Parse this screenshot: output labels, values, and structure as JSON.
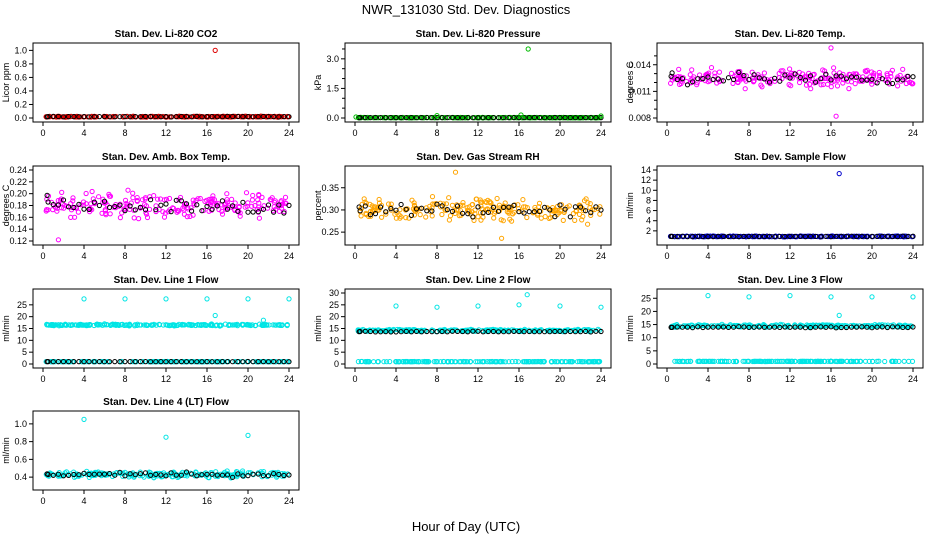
{
  "figure": {
    "title": "NWR_131030  Std. Dev. Diagnostics",
    "xlabel": "Hour of Day (UTC)"
  },
  "colors": {
    "co2": "#dd0000",
    "pressure": "#00bb00",
    "temp": "#ff00ff",
    "rh": "#ffa500",
    "sample_flow": "#0000cc",
    "line_flow": "#00e5e5",
    "highlight": "#000000"
  },
  "chart_data": [
    {
      "type": "scatter",
      "title": "Stan. Dev. Li-820 CO2",
      "ylabel": "Licor ppm",
      "xlim": [
        0,
        24
      ],
      "ylim": [
        0,
        1.05
      ],
      "yticks": [
        0,
        0.2,
        0.4,
        0.6,
        0.8,
        1.0
      ],
      "ytick_labels": [
        "0.0",
        "0.2",
        "0.4",
        "0.6",
        "0.8",
        "1.0"
      ],
      "xticks": [
        0,
        4,
        8,
        12,
        16,
        20,
        24
      ],
      "series_color": "#dd0000",
      "baseline": 0.02,
      "spread": 0.008,
      "outliers": [
        {
          "x": 16.8,
          "y": 1.0
        }
      ]
    },
    {
      "type": "scatter",
      "title": "Stan. Dev. Li-820 Pressure",
      "ylabel": "kPa",
      "xlim": [
        0,
        24
      ],
      "ylim": [
        0,
        3.6
      ],
      "yticks": [
        0,
        1.5,
        3.0
      ],
      "ytick_labels": [
        "0.0",
        "1.5",
        "3.0"
      ],
      "minor_yticks": [
        0.5,
        1,
        2,
        2.5,
        3.5
      ],
      "xticks": [
        0,
        4,
        8,
        12,
        16,
        20,
        24
      ],
      "series_color": "#00bb00",
      "baseline": 0.02,
      "spread": 0.01,
      "outliers": [
        {
          "x": 16.9,
          "y": 3.5
        },
        {
          "x": 16.2,
          "y": 0.15
        },
        {
          "x": 8.0,
          "y": 0.12
        },
        {
          "x": 24,
          "y": 0.1
        },
        {
          "x": 0.1,
          "y": 0.05
        }
      ]
    },
    {
      "type": "scatter",
      "title": "Stan. Dev. Li-820 Temp.",
      "ylabel": "degrees C",
      "xlim": [
        0,
        24
      ],
      "ylim": [
        0.008,
        0.016
      ],
      "yticks": [
        0.008,
        0.011,
        0.014
      ],
      "ytick_labels": [
        "0.008",
        "0.011",
        "0.014"
      ],
      "minor_yticks": [
        0.009,
        0.01,
        0.012,
        0.013,
        0.015
      ],
      "xticks": [
        0,
        4,
        8,
        12,
        16,
        20,
        24
      ],
      "series_color": "#ff00ff",
      "baseline": 0.0125,
      "spread": 0.0014,
      "outliers": [
        {
          "x": 16.0,
          "y": 0.0159
        },
        {
          "x": 16.5,
          "y": 0.0082
        }
      ]
    },
    {
      "type": "scatter",
      "title": "Stan. Dev. Amb. Box Temp.",
      "ylabel": "degrees C",
      "xlim": [
        0,
        24
      ],
      "ylim": [
        0.12,
        0.24
      ],
      "yticks": [
        0.12,
        0.14,
        0.16,
        0.18,
        0.2,
        0.22,
        0.24
      ],
      "ytick_labels": [
        "0.12",
        "0.14",
        "0.16",
        "0.18",
        "0.20",
        "0.22",
        "0.24"
      ],
      "xticks": [
        0,
        4,
        8,
        12,
        16,
        20,
        24
      ],
      "series_color": "#ff00ff",
      "baseline": 0.18,
      "spread": 0.03,
      "outliers": [
        {
          "x": 1.5,
          "y": 0.122
        }
      ]
    },
    {
      "type": "scatter",
      "title": "Stan. Dev. Gas Stream RH",
      "ylabel": "percent",
      "xlim": [
        0,
        24
      ],
      "ylim": [
        0.23,
        0.39
      ],
      "yticks": [
        0.25,
        0.3,
        0.35
      ],
      "ytick_labels": [
        "0.25",
        "0.30",
        "0.35"
      ],
      "xticks": [
        0,
        4,
        8,
        12,
        16,
        20,
        24
      ],
      "series_color": "#ffa500",
      "baseline": 0.3,
      "spread": 0.035,
      "outliers": [
        {
          "x": 9.8,
          "y": 0.385
        },
        {
          "x": 14.3,
          "y": 0.236
        }
      ]
    },
    {
      "type": "scatter",
      "title": "Stan. Dev. Sample Flow",
      "ylabel": "ml/min",
      "xlim": [
        0,
        24
      ],
      "ylim": [
        0,
        14
      ],
      "yticks": [
        2,
        4,
        6,
        8,
        10,
        12,
        14
      ],
      "ytick_labels": [
        "2",
        "4",
        "6",
        "8",
        "10",
        "12",
        "14"
      ],
      "xticks": [
        0,
        4,
        8,
        12,
        16,
        20,
        24
      ],
      "series_color": "#0000cc",
      "baseline": 0.9,
      "spread": 0.12,
      "outliers": [
        {
          "x": 16.8,
          "y": 13.3
        }
      ]
    },
    {
      "type": "scatter",
      "title": "Stan. Dev. Line 1 Flow",
      "ylabel": "ml/min",
      "xlim": [
        0,
        24
      ],
      "ylim": [
        0,
        30
      ],
      "yticks": [
        0,
        5,
        10,
        15,
        20,
        25
      ],
      "ytick_labels": [
        "0",
        "5",
        "10",
        "15",
        "20",
        "25"
      ],
      "xticks": [
        0,
        4,
        8,
        12,
        16,
        20,
        24
      ],
      "series_color": "#00e5e5",
      "baseline": 16.5,
      "spread": 0.5,
      "low_band": 1.0,
      "outliers": [
        {
          "x": 4,
          "y": 27.5
        },
        {
          "x": 8,
          "y": 27.5
        },
        {
          "x": 12,
          "y": 27.5
        },
        {
          "x": 16,
          "y": 27.5
        },
        {
          "x": 20,
          "y": 27.5
        },
        {
          "x": 24,
          "y": 27.5
        },
        {
          "x": 16.8,
          "y": 20.5
        },
        {
          "x": 21.5,
          "y": 18.5
        }
      ]
    },
    {
      "type": "scatter",
      "title": "Stan. Dev. Line 2 Flow",
      "ylabel": "ml/min",
      "xlim": [
        0,
        24
      ],
      "ylim": [
        0,
        30
      ],
      "yticks": [
        0,
        5,
        10,
        15,
        20,
        25,
        30
      ],
      "ytick_labels": [
        "0",
        "5",
        "10",
        "15",
        "20",
        "25",
        "30"
      ],
      "xticks": [
        0,
        4,
        8,
        12,
        16,
        20,
        24
      ],
      "series_color": "#00e5e5",
      "baseline": 14.2,
      "spread": 0.6,
      "low_band": 1.0,
      "outliers": [
        {
          "x": 4,
          "y": 24.5
        },
        {
          "x": 8,
          "y": 24
        },
        {
          "x": 12,
          "y": 24.5
        },
        {
          "x": 16,
          "y": 25
        },
        {
          "x": 16.8,
          "y": 29.3
        },
        {
          "x": 20,
          "y": 24.5
        },
        {
          "x": 24,
          "y": 24
        }
      ]
    },
    {
      "type": "scatter",
      "title": "Stan. Dev. Line 3 Flow",
      "ylabel": "ml/min",
      "xlim": [
        0,
        24
      ],
      "ylim": [
        0,
        27
      ],
      "yticks": [
        0,
        5,
        10,
        15,
        20,
        25
      ],
      "ytick_labels": [
        "0",
        "5",
        "10",
        "15",
        "20",
        "25"
      ],
      "xticks": [
        0,
        4,
        8,
        12,
        16,
        20,
        24
      ],
      "series_color": "#00e5e5",
      "baseline": 14.5,
      "spread": 0.7,
      "low_band": 1.0,
      "outliers": [
        {
          "x": 4,
          "y": 26
        },
        {
          "x": 8,
          "y": 25.5
        },
        {
          "x": 12,
          "y": 26
        },
        {
          "x": 16,
          "y": 25.5
        },
        {
          "x": 20,
          "y": 25.5
        },
        {
          "x": 24,
          "y": 25.5
        },
        {
          "x": 16.8,
          "y": 18.5
        }
      ]
    },
    {
      "type": "scatter",
      "title": "Stan. Dev. Line 4 (LT) Flow",
      "ylabel": "ml/min",
      "xlim": [
        0,
        24
      ],
      "ylim": [
        0.3,
        1.1
      ],
      "yticks": [
        0.4,
        0.6,
        0.8,
        1.0
      ],
      "ytick_labels": [
        "0.4",
        "0.6",
        "0.8",
        "1.0"
      ],
      "xticks": [
        0,
        4,
        8,
        12,
        16,
        20,
        24
      ],
      "series_color": "#00e5e5",
      "baseline": 0.43,
      "spread": 0.05,
      "outliers": [
        {
          "x": 4,
          "y": 1.05
        },
        {
          "x": 12,
          "y": 0.85
        },
        {
          "x": 20,
          "y": 0.87
        }
      ]
    }
  ]
}
